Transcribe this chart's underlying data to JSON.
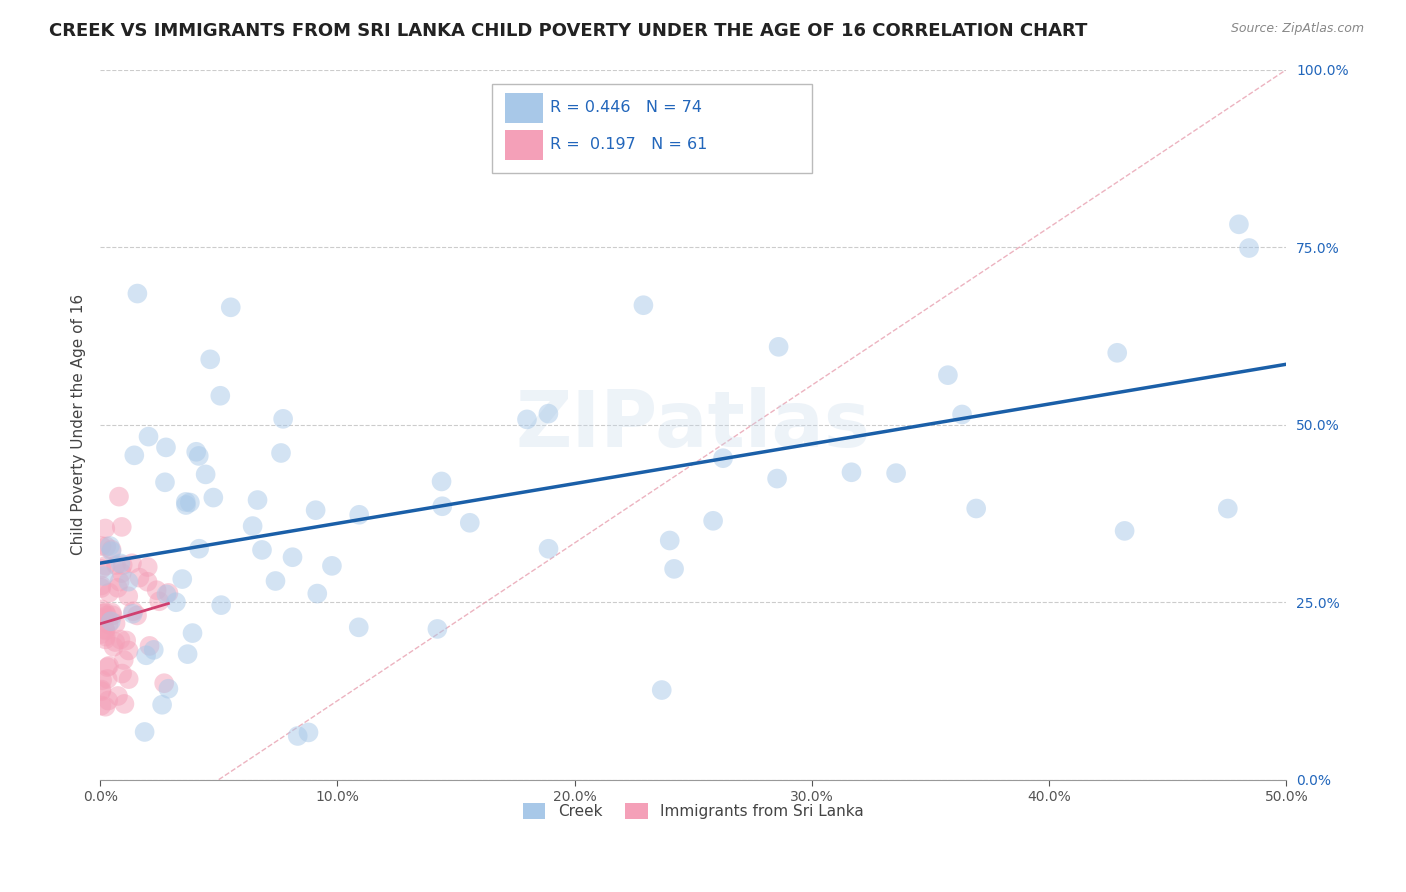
{
  "title": "CREEK VS IMMIGRANTS FROM SRI LANKA CHILD POVERTY UNDER THE AGE OF 16 CORRELATION CHART",
  "source": "Source: ZipAtlas.com",
  "ylabel": "Child Poverty Under the Age of 16",
  "legend_labels": [
    "Creek",
    "Immigrants from Sri Lanka"
  ],
  "R_creek": 0.446,
  "N_creek": 74,
  "R_srilanka": 0.197,
  "N_srilanka": 61,
  "creek_color": "#a8c8e8",
  "srilanka_color": "#f4a0b8",
  "creek_line_color": "#1a5fa8",
  "srilanka_line_color": "#d04070",
  "ref_line_color": "#e8b0c0",
  "background_color": "#ffffff",
  "grid_color": "#cccccc",
  "xlim": [
    0.0,
    0.5
  ],
  "ylim": [
    0.0,
    1.0
  ],
  "xticks": [
    0.0,
    0.1,
    0.2,
    0.3,
    0.4,
    0.5
  ],
  "yticks": [
    0.0,
    0.25,
    0.5,
    0.75,
    1.0
  ],
  "watermark_text": "ZIPatlas",
  "title_fontsize": 13,
  "axis_label_fontsize": 11,
  "tick_fontsize": 10
}
